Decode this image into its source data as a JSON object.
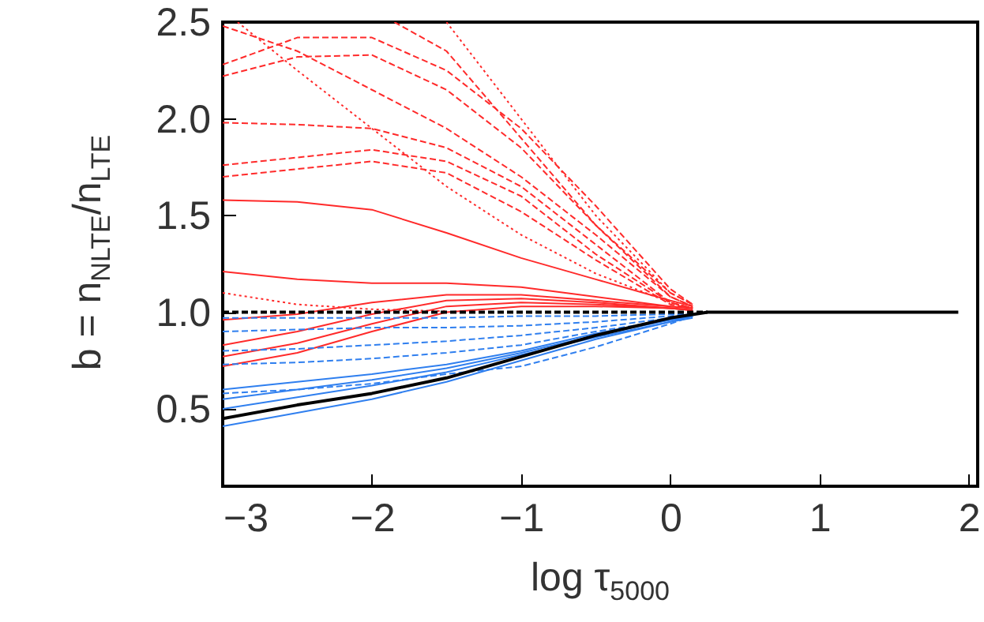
{
  "chart_data": {
    "type": "line",
    "xlabel": "log τ$_{5000}$",
    "ylabel": "b = n$_{NLTE}$/n$_{LTE}$",
    "xlim": [
      -3,
      2.06
    ],
    "ylim": [
      0.1,
      2.5
    ],
    "xticks": [
      -3,
      -2,
      -1,
      0,
      1,
      2
    ],
    "yticks": [
      0.5,
      {
        "value": 1,
        "label": "1.0"
      },
      1.5,
      {
        "value": 2,
        "label": "2.0"
      },
      2.5
    ],
    "series": [
      {
        "color": "#ff2a2a",
        "line_style": "solid",
        "x": [
          -3,
          -2.5,
          -2,
          -1.5,
          -1,
          -0.5,
          0,
          0.15
        ],
        "values": [
          1.58,
          1.57,
          1.53,
          1.41,
          1.28,
          1.17,
          1.06,
          1.03
        ]
      },
      {
        "color": "#ff2a2a",
        "line_style": "solid",
        "x": [
          -3,
          -2.5,
          -2,
          -1.5,
          -1,
          -0.5,
          0,
          0.15
        ],
        "values": [
          1.21,
          1.17,
          1.15,
          1.15,
          1.13,
          1.08,
          1.03,
          1.02
        ]
      },
      {
        "color": "#ff2a2a",
        "line_style": "solid",
        "x": [
          -3,
          -2.5,
          -2,
          -1.5,
          -1,
          -0.5,
          0,
          0.15
        ],
        "values": [
          0.96,
          0.99,
          1.05,
          1.09,
          1.09,
          1.06,
          1.03,
          1.02
        ]
      },
      {
        "color": "#ff2a2a",
        "line_style": "solid",
        "x": [
          -3,
          -2.5,
          -2,
          -1.5,
          -1,
          -0.5,
          0,
          0.15
        ],
        "values": [
          0.83,
          0.9,
          0.99,
          1.06,
          1.07,
          1.05,
          1.02,
          1.01
        ]
      },
      {
        "color": "#ff2a2a",
        "line_style": "solid",
        "x": [
          -3,
          -2.5,
          -2,
          -1.5,
          -1,
          -0.5,
          0,
          0.15
        ],
        "values": [
          0.77,
          0.84,
          0.94,
          1.03,
          1.05,
          1.04,
          1.02,
          1.01
        ]
      },
      {
        "color": "#ff2a2a",
        "line_style": "solid",
        "x": [
          -3,
          -2.5,
          -2,
          -1.5,
          -1,
          -0.5,
          0,
          0.15
        ],
        "values": [
          0.72,
          0.79,
          0.9,
          1.0,
          1.03,
          1.03,
          1.02,
          1.01
        ]
      },
      {
        "color": "#ff2a2a",
        "line_style": "dashed",
        "x": [
          -3,
          -2.5,
          -2,
          -1.5,
          -1,
          -0.5,
          0,
          0.15
        ],
        "values": [
          2.28,
          2.42,
          2.42,
          2.25,
          1.95,
          1.55,
          1.12,
          1.04
        ]
      },
      {
        "color": "#ff2a2a",
        "line_style": "dashed",
        "x": [
          -3,
          -2.5,
          -2,
          -1.5,
          -1,
          -0.5,
          0,
          0.15
        ],
        "values": [
          2.22,
          2.32,
          2.33,
          2.15,
          1.85,
          1.45,
          1.08,
          1.03
        ]
      },
      {
        "color": "#ff2a2a",
        "line_style": "dashed",
        "x": [
          -3,
          -2.5,
          -2,
          -1.5,
          -1,
          -0.5,
          0,
          0.15
        ],
        "values": [
          1.98,
          1.97,
          1.95,
          1.85,
          1.65,
          1.35,
          1.05,
          1.02
        ]
      },
      {
        "color": "#ff2a2a",
        "line_style": "dashed",
        "x": [
          -3,
          -2.5,
          -2,
          -1.5,
          -1,
          -0.5,
          0,
          0.15
        ],
        "values": [
          1.76,
          1.8,
          1.84,
          1.78,
          1.6,
          1.3,
          1.05,
          1.02
        ]
      },
      {
        "color": "#ff2a2a",
        "line_style": "dashed",
        "x": [
          -3,
          -2.5,
          -2,
          -1.5,
          -1,
          -0.5,
          0,
          0.15
        ],
        "values": [
          1.7,
          1.74,
          1.78,
          1.72,
          1.52,
          1.27,
          1.04,
          1.02
        ]
      },
      {
        "color": "#ff2a2a",
        "line_style": "dashed",
        "x": [
          -3,
          -2.5,
          -2,
          -1.5,
          -1,
          -0.5,
          0,
          0.15
        ],
        "values": [
          2.48,
          2.35,
          2.15,
          1.95,
          1.7,
          1.4,
          1.08,
          1.03
        ]
      },
      {
        "color": "#ff2a2a",
        "line_style": "dashed",
        "x": [
          -1.85,
          -1.5,
          -1,
          -0.5,
          0,
          0.15
        ],
        "values": [
          2.5,
          2.35,
          1.9,
          1.45,
          1.1,
          1.04
        ]
      },
      {
        "color": "#ff2a2a",
        "line_style": "dotted",
        "x": [
          -2.9,
          -2.5,
          -2,
          -1.5,
          -1,
          -0.5,
          0,
          0.15
        ],
        "values": [
          2.5,
          2.25,
          1.95,
          1.65,
          1.4,
          1.2,
          1.05,
          1.02
        ]
      },
      {
        "color": "#ff2a2a",
        "line_style": "dotted",
        "x": [
          -3,
          -2.5,
          -2,
          -1.5
        ],
        "values": [
          1.1,
          1.04,
          1.015,
          1.005
        ]
      },
      {
        "color": "#ff2a2a",
        "line_style": "dotted",
        "x": [
          -1.5,
          -1,
          -0.5,
          0,
          0.15
        ],
        "values": [
          2.5,
          2.0,
          1.5,
          1.1,
          1.04
        ]
      },
      {
        "color": "#2f7fef",
        "line_style": "dashed",
        "x": [
          -3,
          -2.5,
          -2,
          -1.5,
          -1,
          -0.5,
          0,
          0.15
        ],
        "values": [
          0.97,
          0.97,
          0.97,
          0.97,
          0.98,
          0.98,
          0.99,
          0.99
        ]
      },
      {
        "color": "#2f7fef",
        "line_style": "dashed",
        "x": [
          -3,
          -2.5,
          -2,
          -1.5,
          -1,
          -0.5,
          0,
          0.15
        ],
        "values": [
          0.9,
          0.91,
          0.92,
          0.92,
          0.93,
          0.95,
          0.98,
          0.99
        ]
      },
      {
        "color": "#2f7fef",
        "line_style": "dashed",
        "x": [
          -3,
          -2.5,
          -2,
          -1.5,
          -1,
          -0.5,
          0,
          0.15
        ],
        "values": [
          0.8,
          0.81,
          0.83,
          0.85,
          0.88,
          0.92,
          0.97,
          0.99
        ]
      },
      {
        "color": "#2f7fef",
        "line_style": "dashed",
        "x": [
          -3,
          -2.5,
          -2,
          -1.5,
          -1,
          -0.5,
          0,
          0.15
        ],
        "values": [
          0.73,
          0.74,
          0.76,
          0.79,
          0.83,
          0.9,
          0.96,
          0.98
        ]
      },
      {
        "color": "#2f7fef",
        "line_style": "dashed",
        "x": [
          -3,
          -2.5,
          -2,
          -1.5,
          -1,
          -0.5,
          0,
          0.15
        ],
        "values": [
          0.58,
          0.6,
          0.63,
          0.68,
          0.72,
          0.82,
          0.94,
          0.98
        ]
      },
      {
        "color": "#2f7fef",
        "line_style": "solid",
        "x": [
          -3,
          -2.5,
          -2,
          -1.5,
          -1,
          -0.5,
          0,
          0.15
        ],
        "values": [
          0.6,
          0.64,
          0.68,
          0.73,
          0.8,
          0.89,
          0.96,
          0.98
        ]
      },
      {
        "color": "#2f7fef",
        "line_style": "solid",
        "x": [
          -3,
          -2.5,
          -2,
          -1.5,
          -1,
          -0.5,
          0,
          0.15
        ],
        "values": [
          0.55,
          0.6,
          0.65,
          0.71,
          0.79,
          0.88,
          0.96,
          0.98
        ]
      },
      {
        "color": "#2f7fef",
        "line_style": "solid",
        "x": [
          -3,
          -2.5,
          -2,
          -1.5,
          -1,
          -0.5,
          0,
          0.15
        ],
        "values": [
          0.5,
          0.56,
          0.62,
          0.69,
          0.78,
          0.87,
          0.95,
          0.98
        ]
      },
      {
        "color": "#2f7fef",
        "line_style": "solid",
        "x": [
          -3,
          -2.5,
          -2,
          -1.5,
          -1,
          -0.5,
          0,
          0.15
        ],
        "values": [
          0.41,
          0.48,
          0.55,
          0.64,
          0.75,
          0.86,
          0.95,
          0.97
        ]
      },
      {
        "color": "#000000",
        "line_style": "dashed",
        "x": [
          -3,
          -2,
          -1,
          0,
          0.25
        ],
        "values": [
          1.0,
          1.0,
          1.0,
          1.0,
          1.0
        ]
      },
      {
        "color": "#000000",
        "line_style": "solid",
        "x": [
          -3,
          -2.5,
          -2,
          -1.5,
          -1,
          -0.5,
          0,
          0.25,
          0.5,
          1,
          1.5,
          1.93
        ],
        "values": [
          0.45,
          0.52,
          0.58,
          0.66,
          0.77,
          0.88,
          0.97,
          1.0,
          1.0,
          1.0,
          1.0,
          1.0
        ]
      }
    ]
  }
}
